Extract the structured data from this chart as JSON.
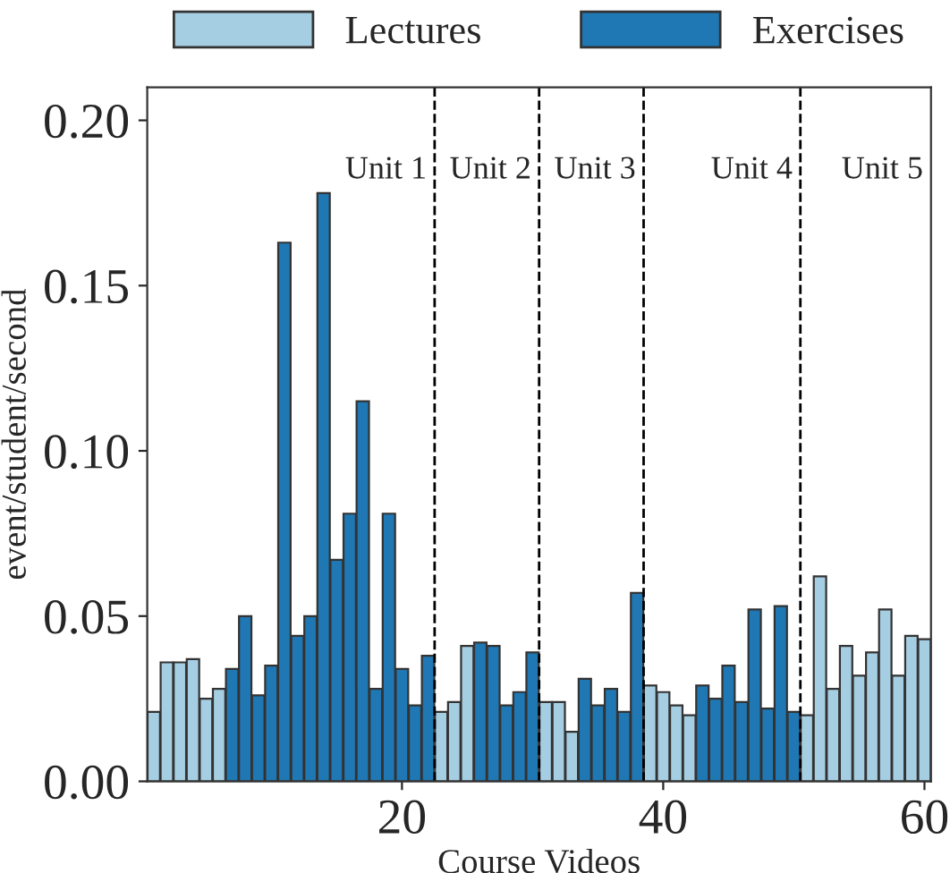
{
  "chart_data": {
    "type": "bar",
    "xlabel": "Course Videos",
    "ylabel": "event/student/second",
    "x": [
      1,
      2,
      3,
      4,
      5,
      6,
      7,
      8,
      9,
      10,
      11,
      12,
      13,
      14,
      15,
      16,
      17,
      18,
      19,
      20,
      21,
      22,
      23,
      24,
      25,
      26,
      27,
      28,
      29,
      30,
      31,
      32,
      33,
      34,
      35,
      36,
      37,
      38,
      39,
      40,
      41,
      42,
      43,
      44,
      45,
      46,
      47,
      48,
      49,
      50,
      51,
      52,
      53,
      54,
      55,
      56,
      57,
      58,
      59,
      60
    ],
    "series": [
      {
        "name": "Lectures",
        "color": "#a6cee3",
        "values": [
          0.021,
          0.036,
          0.036,
          0.037,
          0.025,
          0.028,
          null,
          null,
          null,
          null,
          null,
          null,
          null,
          null,
          null,
          null,
          null,
          null,
          null,
          null,
          null,
          null,
          0.021,
          0.024,
          0.041,
          null,
          null,
          null,
          null,
          null,
          0.024,
          0.024,
          0.015,
          null,
          null,
          null,
          null,
          null,
          0.029,
          0.027,
          0.023,
          0.02,
          null,
          null,
          null,
          null,
          null,
          null,
          null,
          null,
          0.02,
          0.062,
          0.028,
          0.041,
          0.032,
          0.039,
          0.052,
          0.032,
          0.044,
          0.043
        ]
      },
      {
        "name": "Exercises",
        "color": "#1f78b4",
        "values": [
          null,
          null,
          null,
          null,
          null,
          null,
          0.034,
          0.05,
          0.026,
          0.035,
          0.163,
          0.044,
          0.05,
          0.178,
          0.067,
          0.081,
          0.115,
          0.028,
          0.081,
          0.034,
          0.023,
          0.038,
          null,
          null,
          null,
          0.042,
          0.041,
          0.023,
          0.027,
          0.039,
          null,
          null,
          null,
          0.031,
          0.023,
          0.028,
          0.021,
          0.057,
          null,
          null,
          null,
          null,
          0.029,
          0.025,
          0.035,
          0.024,
          0.052,
          0.022,
          0.053,
          0.021,
          null,
          null,
          null,
          null,
          null,
          null,
          null,
          null,
          null,
          null
        ]
      }
    ],
    "xlim": [
      0.5,
      60.5
    ],
    "xticks": [
      20,
      40,
      60
    ],
    "ylim": [
      0,
      0.21
    ],
    "yticks": [
      {
        "value": 0,
        "label": "0.00"
      },
      {
        "value": 0.05,
        "label": "0.05"
      },
      {
        "value": 0.1,
        "label": "0.10"
      },
      {
        "value": 0.15,
        "label": "0.15"
      },
      {
        "value": 0.2,
        "label": "0.20"
      }
    ],
    "ref_lines": [
      {
        "axis": "x",
        "value": 22.5,
        "color": "#000000",
        "line_style": "dashed"
      },
      {
        "axis": "x",
        "value": 30.5,
        "color": "#000000",
        "line_style": "dashed"
      },
      {
        "axis": "x",
        "value": 38.5,
        "color": "#000000",
        "line_style": "dashed"
      },
      {
        "axis": "x",
        "value": 50.5,
        "color": "#000000",
        "line_style": "dashed"
      }
    ],
    "annotations": [
      "Unit 1",
      "Unit 2",
      "Unit 3",
      "Unit 4",
      "Unit 5"
    ],
    "legend": "top",
    "grid": false
  }
}
